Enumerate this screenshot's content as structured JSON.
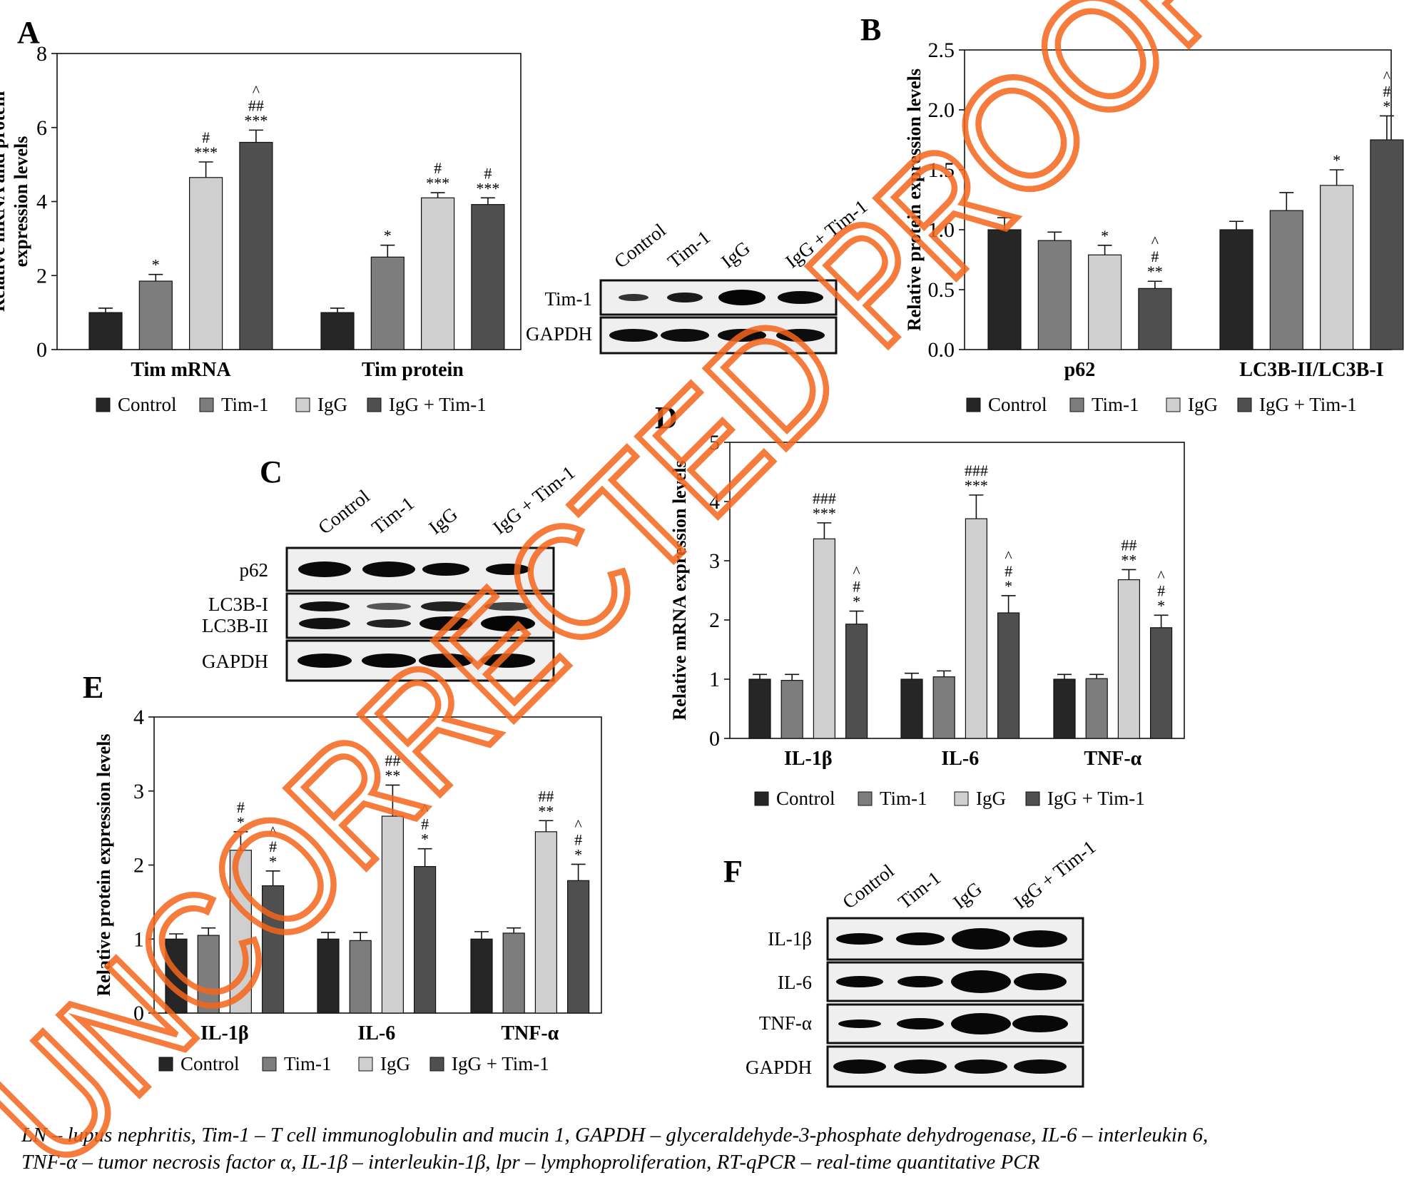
{
  "legend": [
    "Control",
    "Tim-1",
    "IgG",
    "IgG + Tim-1"
  ],
  "colors": {
    "Control": "#262626",
    "Tim-1": "#7d7d7d",
    "IgG": "#cfcfcf",
    "IgG + Tim-1": "#4f4f4f",
    "watermark": "#f4661b"
  },
  "chart_data": [
    {
      "panel": "A",
      "type": "bar",
      "ylabel": "Relative mRNA and protein expression levels",
      "ylim": [
        0,
        8
      ],
      "yticks": [
        "0",
        "2",
        "4",
        "6",
        "8"
      ],
      "categories": [
        "Tim mRNA",
        "Tim protein"
      ],
      "series": [
        {
          "name": "Control",
          "values": [
            1.0,
            1.0
          ],
          "errors": [
            0.12,
            0.12
          ]
        },
        {
          "name": "Tim-1",
          "values": [
            1.85,
            2.5
          ],
          "errors": [
            0.18,
            0.32
          ]
        },
        {
          "name": "IgG",
          "values": [
            4.65,
            4.1
          ],
          "errors": [
            0.42,
            0.14
          ]
        },
        {
          "name": "IgG + Tim-1",
          "values": [
            5.6,
            3.92
          ],
          "errors": [
            0.33,
            0.18
          ]
        }
      ],
      "annotations": [
        [
          "",
          ""
        ],
        [
          "*",
          "*"
        ],
        [
          "***\n#",
          "***\n#"
        ],
        [
          "***\n##\n^",
          "***\n#"
        ]
      ]
    },
    {
      "panel": "B",
      "type": "bar",
      "ylabel": "Relative protein expression levels",
      "ylim": [
        0,
        2.5
      ],
      "yticks": [
        "0.0",
        "0.5",
        "1.0",
        "1.5",
        "2.0",
        "2.5"
      ],
      "categories": [
        "p62",
        "LC3B-II/LC3B-I"
      ],
      "series": [
        {
          "name": "Control",
          "values": [
            1.0,
            1.0
          ],
          "errors": [
            0.1,
            0.07
          ]
        },
        {
          "name": "Tim-1",
          "values": [
            0.91,
            1.16
          ],
          "errors": [
            0.07,
            0.15
          ]
        },
        {
          "name": "IgG",
          "values": [
            0.79,
            1.37
          ],
          "errors": [
            0.08,
            0.13
          ]
        },
        {
          "name": "IgG + Tim-1",
          "values": [
            0.51,
            1.75
          ],
          "errors": [
            0.06,
            0.2
          ]
        }
      ],
      "annotations": [
        [
          "",
          ""
        ],
        [
          "",
          ""
        ],
        [
          "*",
          "*"
        ],
        [
          "**\n#\n^",
          "*\n#\n^"
        ]
      ]
    },
    {
      "panel": "D",
      "type": "bar",
      "ylabel": "Relative mRNA expression levels",
      "ylim": [
        0,
        5
      ],
      "yticks": [
        "0",
        "1",
        "2",
        "3",
        "4",
        "5"
      ],
      "categories": [
        "IL-1β",
        "IL-6",
        "TNF-α"
      ],
      "series": [
        {
          "name": "Control",
          "values": [
            1.0,
            1.0,
            1.0
          ],
          "errors": [
            0.08,
            0.1,
            0.08
          ]
        },
        {
          "name": "Tim-1",
          "values": [
            0.98,
            1.04,
            1.01
          ],
          "errors": [
            0.1,
            0.1,
            0.07
          ]
        },
        {
          "name": "IgG",
          "values": [
            3.37,
            3.71,
            2.68
          ],
          "errors": [
            0.27,
            0.4,
            0.17
          ]
        },
        {
          "name": "IgG + Tim-1",
          "values": [
            1.93,
            2.12,
            1.87
          ],
          "errors": [
            0.22,
            0.29,
            0.21
          ]
        }
      ],
      "annotations": [
        [
          "",
          "",
          ""
        ],
        [
          "",
          "",
          ""
        ],
        [
          "***\n###",
          "***\n###",
          "**\n##"
        ],
        [
          "*\n#\n^",
          "*\n#\n^",
          "*\n#\n^"
        ]
      ]
    },
    {
      "panel": "E",
      "type": "bar",
      "ylabel": "Relative protein expression levels",
      "ylim": [
        0,
        4
      ],
      "yticks": [
        "0",
        "1",
        "2",
        "3",
        "4"
      ],
      "categories": [
        "IL-1β",
        "IL-6",
        "TNF-α"
      ],
      "series": [
        {
          "name": "Control",
          "values": [
            1.0,
            1.0,
            1.0
          ],
          "errors": [
            0.07,
            0.09,
            0.1
          ]
        },
        {
          "name": "Tim-1",
          "values": [
            1.05,
            0.98,
            1.08
          ],
          "errors": [
            0.1,
            0.11,
            0.07
          ]
        },
        {
          "name": "IgG",
          "values": [
            2.2,
            2.66,
            2.45
          ],
          "errors": [
            0.25,
            0.42,
            0.15
          ]
        },
        {
          "name": "IgG + Tim-1",
          "values": [
            1.72,
            1.98,
            1.79
          ],
          "errors": [
            0.2,
            0.24,
            0.22
          ]
        }
      ],
      "annotations": [
        [
          "",
          "",
          ""
        ],
        [
          "",
          "",
          ""
        ],
        [
          "*\n#",
          "**\n##",
          "**\n##"
        ],
        [
          "*\n#\n^",
          "*\n#\n^",
          "*\n#\n^"
        ]
      ]
    }
  ],
  "blots": {
    "A": {
      "lanes": [
        "Control",
        "Tim-1",
        "IgG",
        "IgG + Tim-1"
      ],
      "rows": [
        "Tim-1",
        "GAPDH"
      ]
    },
    "C": {
      "lanes": [
        "Control",
        "Tim-1",
        "IgG",
        "IgG + Tim-1"
      ],
      "rows": [
        "p62",
        "LC3B-I",
        "LC3B-II",
        "GAPDH"
      ]
    },
    "F": {
      "lanes": [
        "Control",
        "Tim-1",
        "IgG",
        "IgG + Tim-1"
      ],
      "rows": [
        "IL-1β",
        "IL-6",
        "TNF-α",
        "GAPDH"
      ]
    }
  },
  "panel_labels": [
    "A",
    "B",
    "C",
    "D",
    "E",
    "F"
  ],
  "watermark": "UNCORRECTED PROOF",
  "caption": [
    "LN – lupus nephritis, Tim-1 – T cell immunoglobulin and mucin 1, GAPDH – glyceraldehyde-3-phosphate dehydrogenase, IL-6 – interleukin 6,",
    "TNF-α – tumor necrosis factor α, IL-1β – interleukin-1β, lpr – lymphoproliferation, RT-qPCR – real-time quantitative PCR"
  ]
}
